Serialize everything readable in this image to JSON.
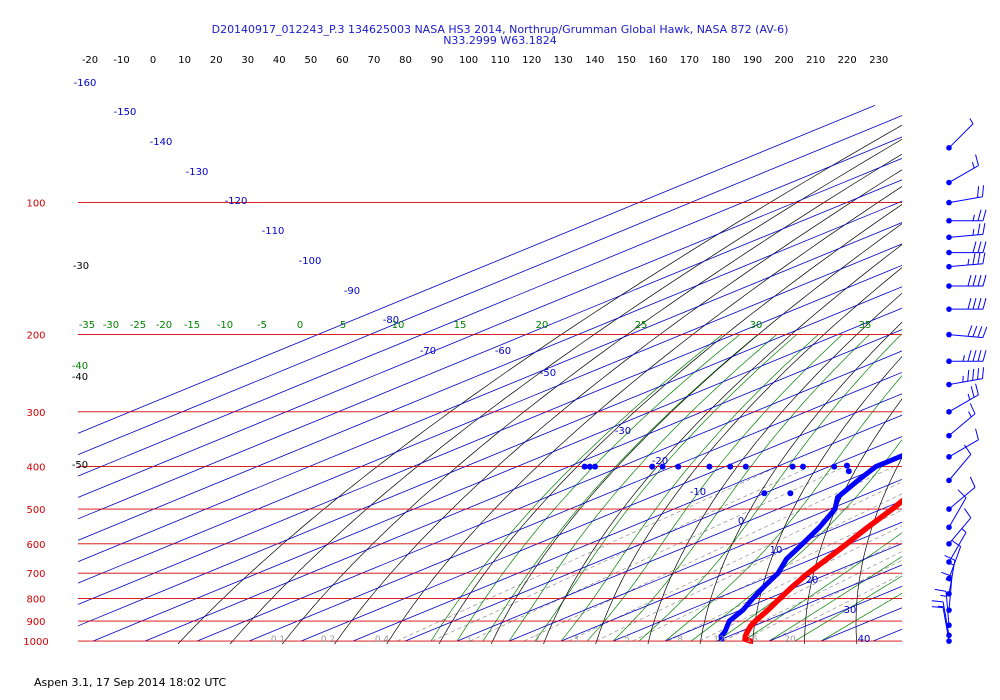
{
  "header": {
    "title": "D20140917_012243_P.3 134625003 NASA HS3 2014, Northrup/Grumman Global Hawk, NASA 872 (AV-6)",
    "subtitle": "N33.2999 W63.1824"
  },
  "footer": {
    "text": "Aspen 3.1, 17 Sep 2014  18:02 UTC"
  },
  "colors": {
    "isobar": "#d40000",
    "isotherm": "#0000c8",
    "dry_adiabat": "#000000",
    "moist_adiabat": "#008000",
    "mixing_ratio": "#808080",
    "temperature_trace": "#ff0000",
    "dewpoint_trace": "#0000ff",
    "wind_barb": "#0000ff"
  },
  "chart_data": {
    "type": "skew-t log-p diagram",
    "temperature_axis_labels": [
      "-20",
      "-10",
      "0",
      "10",
      "20",
      "30",
      "40",
      "50",
      "60",
      "70",
      "80",
      "90",
      "100",
      "110",
      "120",
      "130",
      "140",
      "150",
      "160",
      "170",
      "180",
      "190",
      "200",
      "210",
      "220",
      "230"
    ],
    "pressure_levels": [
      "100",
      "200",
      "300",
      "400",
      "500",
      "600",
      "700",
      "800",
      "900",
      "1000"
    ],
    "pressure_values": [
      100,
      200,
      300,
      400,
      500,
      600,
      700,
      800,
      900,
      1000
    ],
    "isotherm_labels": [
      "-160",
      "-150",
      "-140",
      "-130",
      "-120",
      "-110",
      "-100",
      "-90",
      "-80",
      "-70",
      "-60",
      "-50",
      "-40",
      "-30",
      "-20",
      "-10",
      "0",
      "10",
      "20",
      "30",
      "40"
    ],
    "dry_adiabat_labels": [
      "-30",
      "-40",
      "-50"
    ],
    "moist_adiabat_labels": [
      "-35",
      "-30",
      "-25",
      "-20",
      "-15",
      "-10",
      "-5",
      "0",
      "5",
      "10",
      "15",
      "20",
      "25",
      "30",
      "35"
    ],
    "mixing_ratio_labels": [
      "0.1",
      "0.2",
      "0.4",
      "1",
      "2",
      "3",
      "5",
      "8",
      "12",
      "16",
      "20"
    ],
    "temperature_profile": [
      {
        "p": 1000,
        "t": 26.5
      },
      {
        "p": 990,
        "t": 24.5
      },
      {
        "p": 975,
        "t": 23.2
      },
      {
        "p": 950,
        "t": 21.3
      },
      {
        "p": 925,
        "t": 19.5
      },
      {
        "p": 900,
        "t": 18.0
      },
      {
        "p": 850,
        "t": 15.3
      },
      {
        "p": 800,
        "t": 12.2
      },
      {
        "p": 750,
        "t": 9.0
      },
      {
        "p": 700,
        "t": 5.8
      },
      {
        "p": 650,
        "t": 2.8
      },
      {
        "p": 600,
        "t": -0.5
      },
      {
        "p": 550,
        "t": -4.2
      },
      {
        "p": 500,
        "t": -8.0
      },
      {
        "p": 450,
        "t": -12.6
      },
      {
        "p": 400,
        "t": -17.6
      },
      {
        "p": 350,
        "t": -24.5
      },
      {
        "p": 300,
        "t": -32.3
      },
      {
        "p": 250,
        "t": -42.0
      },
      {
        "p": 230,
        "t": -46.3
      },
      {
        "p": 210,
        "t": -51.0
      },
      {
        "p": 200,
        "t": -53.0
      },
      {
        "p": 180,
        "t": -55.5
      },
      {
        "p": 160,
        "t": -60.0
      },
      {
        "p": 150,
        "t": -63.0
      },
      {
        "p": 140,
        "t": -66.5
      },
      {
        "p": 130,
        "t": -70.5
      },
      {
        "p": 122,
        "t": -74.0
      },
      {
        "p": 115,
        "t": -76.0
      },
      {
        "p": 110,
        "t": -75.8
      },
      {
        "p": 105,
        "t": -76.0
      },
      {
        "p": 100,
        "t": -75.5
      },
      {
        "p": 95,
        "t": -73.0
      },
      {
        "p": 90,
        "t": -68.0
      }
    ],
    "dewpoint_profile": [
      {
        "p": 990,
        "t": 20.0
      },
      {
        "p": 975,
        "t": 18.5
      },
      {
        "p": 950,
        "t": 17.0
      },
      {
        "p": 925,
        "t": 15.0
      },
      {
        "p": 900,
        "t": 13.0
      },
      {
        "p": 850,
        "t": 10.5
      },
      {
        "p": 800,
        "t": 7.0
      },
      {
        "p": 750,
        "t": 3.5
      },
      {
        "p": 700,
        "t": 0.0
      },
      {
        "p": 650,
        "t": -5.0
      },
      {
        "p": 600,
        "t": -9.0
      },
      {
        "p": 550,
        "t": -13.5
      },
      {
        "p": 500,
        "t": -19.0
      },
      {
        "p": 470,
        "t": -24.0
      },
      {
        "p": 430,
        "t": -28.0
      },
      {
        "p": 400,
        "t": -31.0
      },
      {
        "p": 370,
        "t": -31.0
      },
      {
        "p": 350,
        "t": -35.5
      },
      {
        "p": 320,
        "t": -36.5
      },
      {
        "p": 300,
        "t": -42.5
      },
      {
        "p": 280,
        "t": -44.0
      },
      {
        "p": 250,
        "t": -55.0
      },
      {
        "p": 220,
        "t": -58.0
      },
      {
        "p": 205,
        "t": -62.0
      },
      {
        "p": 200,
        "t": -66.0
      },
      {
        "p": 195,
        "t": -73.0
      },
      {
        "p": 190,
        "t": -81.0
      },
      {
        "p": 180,
        "t": -83.0
      },
      {
        "p": 172,
        "t": -85.0
      },
      {
        "p": 160,
        "t": -85.0
      },
      {
        "p": 150,
        "t": -90.0
      },
      {
        "p": 140,
        "t": -95.0
      },
      {
        "p": 130,
        "t": -104.0
      },
      {
        "p": 125,
        "t": -108.0
      },
      {
        "p": 120,
        "t": -109.0
      },
      {
        "p": 117,
        "t": -106.0
      },
      {
        "p": 114,
        "t": -102.0
      }
    ],
    "dewpoint_outliers": [
      {
        "p": 400,
        "t": -87.0
      },
      {
        "p": 400,
        "t": -86.0
      },
      {
        "p": 400,
        "t": -85.0
      },
      {
        "p": 400,
        "t": -74.0
      },
      {
        "p": 400,
        "t": -72.0
      },
      {
        "p": 400,
        "t": -69.0
      },
      {
        "p": 400,
        "t": -63.0
      },
      {
        "p": 400,
        "t": -59.0
      },
      {
        "p": 400,
        "t": -56.0
      },
      {
        "p": 400,
        "t": -47.0
      },
      {
        "p": 400,
        "t": -45.0
      },
      {
        "p": 400,
        "t": -39.0
      },
      {
        "p": 398,
        "t": -37.0
      },
      {
        "p": 410,
        "t": -34.0
      },
      {
        "p": 460,
        "t": -40.0
      },
      {
        "p": 460,
        "t": -35.0
      }
    ],
    "isolated_temperature_point": {
      "p": 75,
      "t": -48.0
    },
    "wind_barbs": [
      {
        "p": 75,
        "dir": 315,
        "kt": 5
      },
      {
        "p": 90,
        "dir": 300,
        "kt": 15
      },
      {
        "p": 100,
        "dir": 280,
        "kt": 20
      },
      {
        "p": 110,
        "dir": 270,
        "kt": 25
      },
      {
        "p": 120,
        "dir": 275,
        "kt": 25
      },
      {
        "p": 130,
        "dir": 270,
        "kt": 30
      },
      {
        "p": 140,
        "dir": 275,
        "kt": 35
      },
      {
        "p": 155,
        "dir": 270,
        "kt": 40
      },
      {
        "p": 175,
        "dir": 270,
        "kt": 40
      },
      {
        "p": 200,
        "dir": 265,
        "kt": 40
      },
      {
        "p": 230,
        "dir": 270,
        "kt": 45
      },
      {
        "p": 260,
        "dir": 280,
        "kt": 45
      },
      {
        "p": 300,
        "dir": 300,
        "kt": 25
      },
      {
        "p": 340,
        "dir": 310,
        "kt": 15
      },
      {
        "p": 380,
        "dir": 300,
        "kt": 10
      },
      {
        "p": 430,
        "dir": 320,
        "kt": 10
      },
      {
        "p": 500,
        "dir": 310,
        "kt": 10
      },
      {
        "p": 550,
        "dir": 330,
        "kt": 10
      },
      {
        "p": 600,
        "dir": 320,
        "kt": 10
      },
      {
        "p": 660,
        "dir": 330,
        "kt": 5
      },
      {
        "p": 720,
        "dir": 340,
        "kt": 10
      },
      {
        "p": 780,
        "dir": 350,
        "kt": 15
      },
      {
        "p": 850,
        "dir": 355,
        "kt": 15
      },
      {
        "p": 920,
        "dir": 5,
        "kt": 15
      },
      {
        "p": 970,
        "dir": 10,
        "kt": 15
      },
      {
        "p": 1000,
        "dir": 10,
        "kt": 10
      }
    ]
  }
}
